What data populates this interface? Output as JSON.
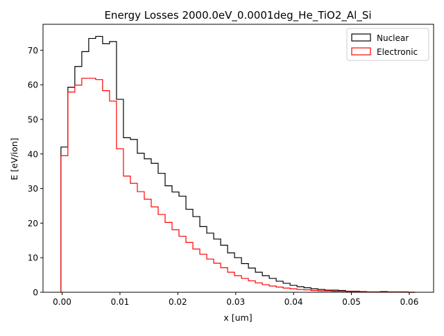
{
  "chart_data": {
    "type": "line",
    "style": "step",
    "title": "Energy Losses 2000.0eV_0.0001deg_He_TiO2_Al_Si",
    "xlabel": "x [um]",
    "ylabel": "E [eV/ion]",
    "xlim": [
      -0.0033,
      0.0642
    ],
    "ylim": [
      0,
      77.5
    ],
    "xticks": [
      0.0,
      0.01,
      0.02,
      0.03,
      0.04,
      0.05,
      0.06
    ],
    "xtick_labels": [
      "0.00",
      "0.01",
      "0.02",
      "0.03",
      "0.04",
      "0.05",
      "0.06"
    ],
    "yticks": [
      0,
      10,
      20,
      30,
      40,
      50,
      60,
      70
    ],
    "ytick_labels": [
      "0",
      "10",
      "20",
      "30",
      "40",
      "50",
      "60",
      "70"
    ],
    "grid": false,
    "legend_position": "top-right",
    "bin_edges": [
      -0.0002,
      0.001,
      0.0022,
      0.0034,
      0.0046,
      0.0058,
      0.007,
      0.0082,
      0.0094,
      0.0106,
      0.0118,
      0.013,
      0.0142,
      0.0154,
      0.0166,
      0.0178,
      0.019,
      0.0202,
      0.0214,
      0.0226,
      0.0238,
      0.025,
      0.0262,
      0.0274,
      0.0286,
      0.0298,
      0.031,
      0.0322,
      0.0334,
      0.0346,
      0.0358,
      0.037,
      0.0382,
      0.0394,
      0.0406,
      0.0418,
      0.043,
      0.0442,
      0.0454,
      0.0466,
      0.0478,
      0.049,
      0.0502,
      0.0514,
      0.0526,
      0.0538,
      0.055,
      0.0562,
      0.0574,
      0.0586,
      0.0598,
      0.061
    ],
    "series": [
      {
        "name": "Nuclear",
        "color": "#000000",
        "values": [
          42.0,
          59.3,
          65.3,
          69.6,
          73.4,
          74.0,
          71.9,
          72.5,
          55.8,
          44.7,
          44.2,
          40.2,
          38.6,
          37.3,
          34.4,
          30.8,
          29.0,
          27.8,
          24.0,
          21.9,
          19.0,
          17.1,
          15.4,
          13.6,
          11.4,
          10.0,
          8.3,
          7.0,
          5.8,
          4.8,
          4.0,
          3.2,
          2.6,
          2.0,
          1.6,
          1.3,
          1.0,
          0.8,
          0.6,
          0.6,
          0.5,
          0.3,
          0.3,
          0.2,
          0.1,
          0.1,
          0.2,
          0.1,
          0.1,
          0.1,
          0.0
        ]
      },
      {
        "name": "Electronic",
        "color": "#ff0000",
        "values": [
          39.5,
          57.9,
          59.9,
          61.9,
          61.9,
          61.5,
          58.3,
          55.3,
          41.5,
          33.6,
          31.5,
          29.1,
          26.9,
          24.7,
          22.5,
          20.2,
          18.1,
          16.2,
          14.4,
          12.5,
          11.0,
          9.6,
          8.4,
          7.1,
          5.8,
          4.8,
          4.0,
          3.3,
          2.7,
          2.2,
          1.8,
          1.5,
          1.2,
          1.0,
          0.8,
          0.7,
          0.5,
          0.4,
          0.4,
          0.3,
          0.3,
          0.2,
          0.2,
          0.2,
          0.1,
          0.1,
          0.1,
          0.1,
          0.1,
          0.1,
          0.0
        ]
      }
    ]
  }
}
